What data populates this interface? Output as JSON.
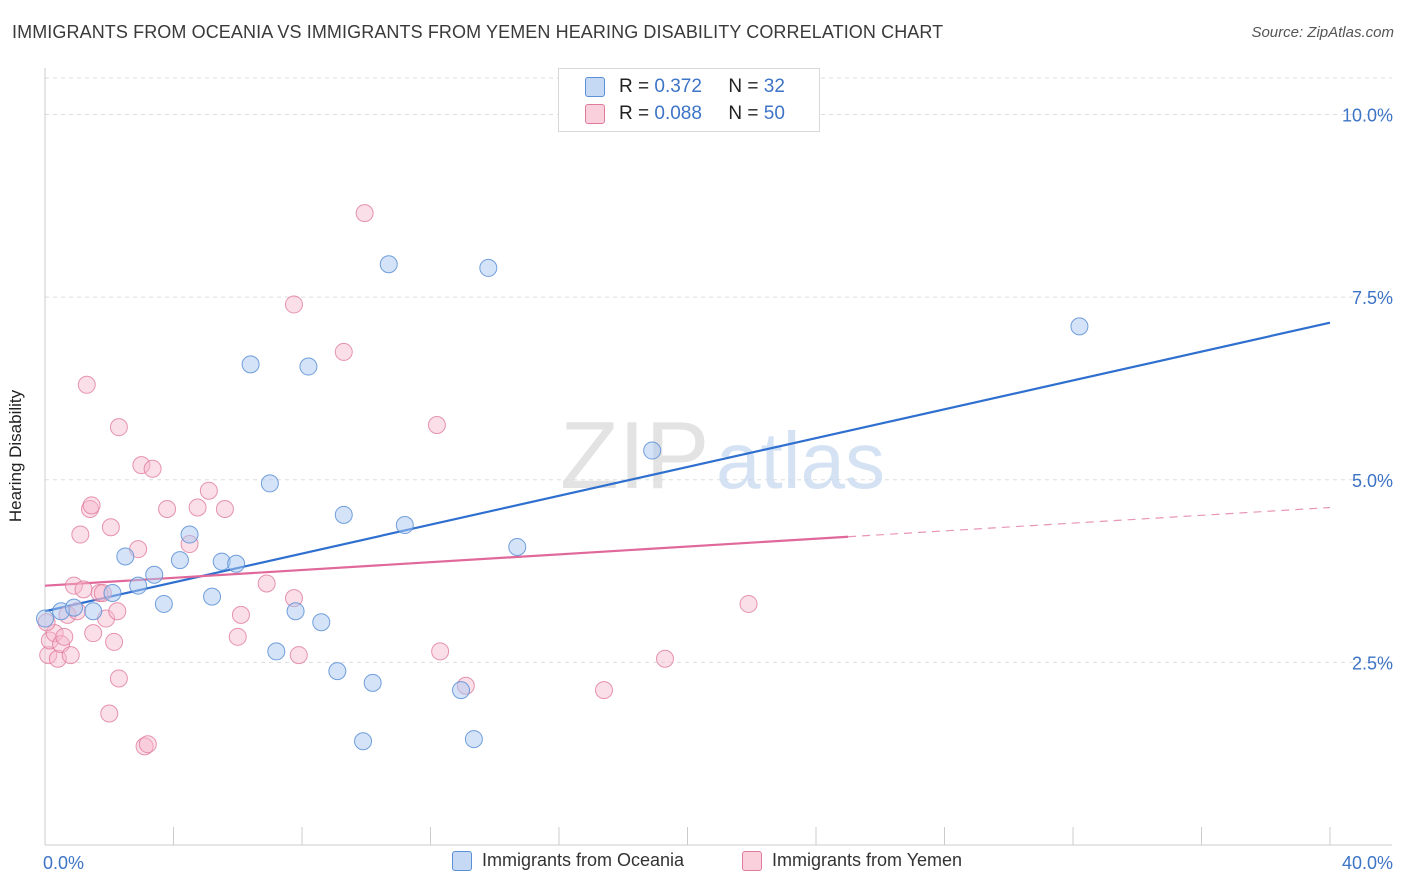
{
  "title": "IMMIGRANTS FROM OCEANIA VS IMMIGRANTS FROM YEMEN HEARING DISABILITY CORRELATION CHART",
  "source": "Source: ZipAtlas.com",
  "watermark": {
    "zip": "ZIP",
    "atlas": "atlas"
  },
  "legend": {
    "oceania": {
      "r_label": "R =",
      "r_value": "0.372",
      "n_label": "N =",
      "n_value": "32"
    },
    "yemen": {
      "r_label": "R =",
      "r_value": "0.088",
      "n_label": "N =",
      "n_value": "50"
    }
  },
  "colors": {
    "oceania_fill": "#aac8f0",
    "oceania_stroke": "#5b8fd6",
    "oceania_line": "#2f6fcf",
    "yemen_fill": "#f7b8cb",
    "yemen_stroke": "#e07a9c",
    "yemen_line": "#e0689a",
    "axis_value": "#3d74c6",
    "grid": "#dddddd"
  },
  "chart_data": {
    "type": "scatter",
    "title": "IMMIGRANTS FROM OCEANIA VS IMMIGRANTS FROM YEMEN HEARING DISABILITY CORRELATION CHART",
    "xlabel": "",
    "ylabel": "Hearing Disability",
    "xlim": [
      0,
      40
    ],
    "ylim": [
      0,
      10.5
    ],
    "x_tick_labels": [
      "0.0%",
      "40.0%"
    ],
    "y_ticks": [
      2.5,
      5.0,
      7.5,
      10.0
    ],
    "y_tick_labels": [
      "2.5%",
      "5.0%",
      "7.5%",
      "10.0%"
    ],
    "legend_position": "bottom",
    "series": [
      {
        "name": "Immigrants from Oceania",
        "color": "#5b8fd6",
        "R": 0.372,
        "N": 32,
        "points": [
          [
            0.0,
            3.1
          ],
          [
            0.5,
            3.2
          ],
          [
            0.9,
            3.25
          ],
          [
            1.5,
            3.2
          ],
          [
            2.1,
            3.45
          ],
          [
            2.5,
            3.95
          ],
          [
            2.9,
            3.55
          ],
          [
            3.4,
            3.7
          ],
          [
            3.7,
            3.3
          ],
          [
            4.2,
            3.9
          ],
          [
            4.5,
            4.25
          ],
          [
            5.2,
            3.4
          ],
          [
            5.5,
            3.88
          ],
          [
            5.95,
            3.85
          ],
          [
            6.4,
            6.58
          ],
          [
            7.0,
            4.95
          ],
          [
            7.2,
            2.65
          ],
          [
            7.8,
            3.2
          ],
          [
            8.2,
            6.55
          ],
          [
            8.6,
            3.05
          ],
          [
            9.1,
            2.38
          ],
          [
            9.3,
            4.52
          ],
          [
            9.9,
            1.42
          ],
          [
            10.2,
            2.22
          ],
          [
            10.7,
            7.95
          ],
          [
            11.2,
            4.38
          ],
          [
            12.95,
            2.12
          ],
          [
            13.35,
            1.45
          ],
          [
            13.8,
            7.9
          ],
          [
            14.7,
            4.08
          ],
          [
            18.9,
            5.4
          ],
          [
            32.2,
            7.1
          ]
        ],
        "trend": {
          "x": [
            0,
            40
          ],
          "y": [
            3.2,
            7.15
          ]
        }
      },
      {
        "name": "Immigrants from Yemen",
        "color": "#e07a9c",
        "R": 0.088,
        "N": 50,
        "points": [
          [
            0.1,
            2.6
          ],
          [
            0.15,
            2.8
          ],
          [
            0.3,
            2.9
          ],
          [
            0.4,
            2.55
          ],
          [
            0.5,
            2.75
          ],
          [
            0.6,
            2.85
          ],
          [
            0.7,
            3.15
          ],
          [
            0.8,
            2.6
          ],
          [
            0.9,
            3.55
          ],
          [
            1.0,
            3.2
          ],
          [
            1.1,
            4.25
          ],
          [
            1.2,
            3.5
          ],
          [
            1.3,
            6.3
          ],
          [
            1.4,
            4.6
          ],
          [
            1.45,
            4.65
          ],
          [
            1.5,
            2.9
          ],
          [
            1.7,
            3.45
          ],
          [
            1.8,
            3.45
          ],
          [
            1.9,
            3.1
          ],
          [
            2.0,
            1.8
          ],
          [
            2.05,
            4.35
          ],
          [
            2.15,
            2.78
          ],
          [
            2.25,
            3.2
          ],
          [
            2.3,
            2.28
          ],
          [
            2.3,
            5.72
          ],
          [
            2.9,
            4.05
          ],
          [
            3.0,
            5.2
          ],
          [
            3.1,
            1.35
          ],
          [
            3.2,
            1.38
          ],
          [
            3.35,
            5.15
          ],
          [
            3.8,
            4.6
          ],
          [
            4.5,
            4.12
          ],
          [
            4.75,
            4.62
          ],
          [
            5.1,
            4.85
          ],
          [
            5.6,
            4.6
          ],
          [
            6.0,
            2.85
          ],
          [
            6.1,
            3.15
          ],
          [
            6.9,
            3.58
          ],
          [
            7.75,
            3.38
          ],
          [
            7.75,
            7.4
          ],
          [
            7.9,
            2.6
          ],
          [
            9.3,
            6.75
          ],
          [
            9.95,
            8.65
          ],
          [
            12.2,
            5.75
          ],
          [
            12.3,
            2.65
          ],
          [
            13.1,
            2.18
          ],
          [
            17.4,
            2.12
          ],
          [
            19.3,
            2.55
          ],
          [
            21.9,
            3.3
          ],
          [
            0.05,
            3.05
          ]
        ],
        "trend": {
          "x": [
            0,
            25
          ],
          "y": [
            3.55,
            4.22
          ]
        },
        "trend_dashed": {
          "x": [
            25,
            40
          ],
          "y": [
            4.22,
            4.62
          ]
        }
      }
    ]
  }
}
